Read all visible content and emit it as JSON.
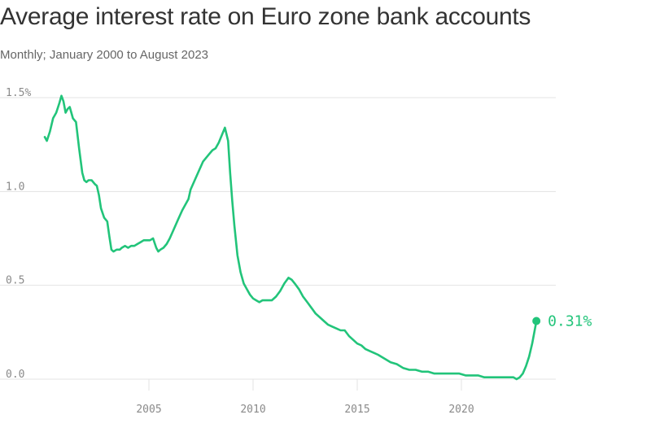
{
  "title": "Average interest rate on Euro zone bank accounts",
  "subtitle": "Monthly; January 2000 to August 2023",
  "colors": {
    "line": "#22c47a",
    "grid": "#e3e3e3",
    "tick": "#8a8a8a",
    "title": "#333333"
  },
  "chart_data": {
    "type": "line",
    "title": "Average interest rate on Euro zone bank accounts",
    "subtitle": "Monthly; January 2000 to August 2023",
    "xlabel": "",
    "ylabel": "",
    "xlim": [
      2000.0,
      2023.6
    ],
    "ylim": [
      0,
      1.5
    ],
    "grid": true,
    "legend": "none",
    "y_ticks": [
      {
        "value": 0,
        "label": "0.0"
      },
      {
        "value": 0.5,
        "label": "0.5"
      },
      {
        "value": 1.0,
        "label": "1.0"
      },
      {
        "value": 1.5,
        "label": "1.5%"
      }
    ],
    "x_ticks": [
      {
        "value": 2005,
        "label": "2005"
      },
      {
        "value": 2010,
        "label": "2010"
      },
      {
        "value": 2015,
        "label": "2015"
      },
      {
        "value": 2020,
        "label": "2020"
      }
    ],
    "end_label": "0.31%",
    "series": [
      {
        "x": [
          2000.0,
          2000.1,
          2000.25,
          2000.4,
          2000.55,
          2000.7,
          2000.8,
          2000.9,
          2001.0,
          2001.1,
          2001.2,
          2001.35,
          2001.5,
          2001.65,
          2001.8,
          2001.9,
          2002.0,
          2002.1,
          2002.25,
          2002.4,
          2002.5,
          2002.6,
          2002.7,
          2002.85,
          2003.0,
          2003.1,
          2003.2,
          2003.3,
          2003.45,
          2003.6,
          2003.7,
          2003.85,
          2004.0,
          2004.15,
          2004.3,
          2004.45,
          2004.6,
          2004.75,
          2004.9,
          2005.05,
          2005.2,
          2005.35,
          2005.45,
          2005.55,
          2005.7,
          2005.85,
          2006.0,
          2006.2,
          2006.4,
          2006.6,
          2006.75,
          2006.9,
          2007.0,
          2007.2,
          2007.4,
          2007.6,
          2007.75,
          2007.9,
          2008.05,
          2008.2,
          2008.35,
          2008.5,
          2008.65,
          2008.8,
          2008.9,
          2009.0,
          2009.1,
          2009.25,
          2009.4,
          2009.55,
          2009.7,
          2009.85,
          2010.0,
          2010.15,
          2010.3,
          2010.45,
          2010.6,
          2010.75,
          2010.9,
          2011.1,
          2011.3,
          2011.5,
          2011.7,
          2011.85,
          2012.0,
          2012.2,
          2012.4,
          2012.6,
          2012.8,
          2013.0,
          2013.2,
          2013.4,
          2013.6,
          2013.8,
          2014.0,
          2014.2,
          2014.4,
          2014.6,
          2014.8,
          2015.0,
          2015.2,
          2015.4,
          2015.6,
          2015.8,
          2016.0,
          2016.3,
          2016.6,
          2016.9,
          2017.2,
          2017.5,
          2017.8,
          2018.1,
          2018.4,
          2018.7,
          2019.0,
          2019.3,
          2019.6,
          2019.9,
          2020.2,
          2020.5,
          2020.8,
          2021.1,
          2021.4,
          2021.7,
          2022.0,
          2022.3,
          2022.5,
          2022.65,
          2022.8,
          2022.95,
          2023.1,
          2023.25,
          2023.4,
          2023.6
        ],
        "y": [
          1.29,
          1.27,
          1.32,
          1.39,
          1.42,
          1.47,
          1.51,
          1.48,
          1.42,
          1.44,
          1.45,
          1.39,
          1.37,
          1.23,
          1.1,
          1.06,
          1.05,
          1.06,
          1.06,
          1.04,
          1.03,
          0.98,
          0.91,
          0.86,
          0.84,
          0.76,
          0.69,
          0.68,
          0.69,
          0.69,
          0.7,
          0.71,
          0.7,
          0.71,
          0.71,
          0.72,
          0.73,
          0.74,
          0.74,
          0.74,
          0.75,
          0.7,
          0.68,
          0.69,
          0.7,
          0.72,
          0.75,
          0.8,
          0.85,
          0.9,
          0.93,
          0.96,
          1.01,
          1.06,
          1.11,
          1.16,
          1.18,
          1.2,
          1.22,
          1.23,
          1.26,
          1.3,
          1.34,
          1.27,
          1.1,
          0.95,
          0.82,
          0.66,
          0.57,
          0.51,
          0.48,
          0.45,
          0.43,
          0.42,
          0.41,
          0.42,
          0.42,
          0.42,
          0.42,
          0.44,
          0.47,
          0.51,
          0.54,
          0.53,
          0.51,
          0.48,
          0.44,
          0.41,
          0.38,
          0.35,
          0.33,
          0.31,
          0.29,
          0.28,
          0.27,
          0.26,
          0.26,
          0.23,
          0.21,
          0.19,
          0.18,
          0.16,
          0.15,
          0.14,
          0.13,
          0.11,
          0.09,
          0.08,
          0.06,
          0.05,
          0.05,
          0.04,
          0.04,
          0.03,
          0.03,
          0.03,
          0.03,
          0.03,
          0.02,
          0.02,
          0.02,
          0.01,
          0.01,
          0.01,
          0.01,
          0.01,
          0.01,
          0.0,
          0.01,
          0.03,
          0.07,
          0.12,
          0.19,
          0.31
        ]
      }
    ]
  }
}
